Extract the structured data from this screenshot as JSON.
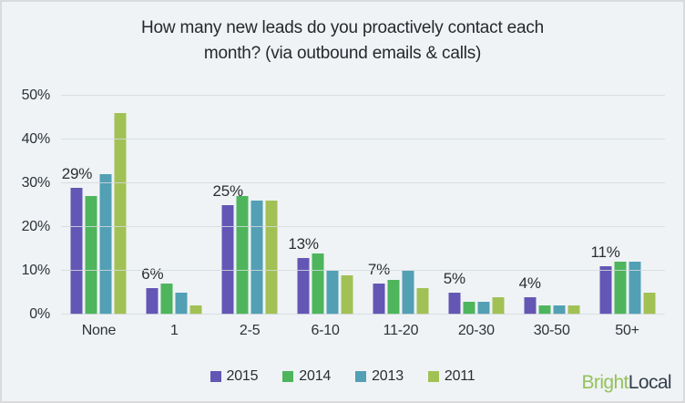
{
  "card": {
    "background": "#eff3f6",
    "border_color": "#d8dadb"
  },
  "chart_data": {
    "type": "bar",
    "title": "How many new leads do you proactively contact each month? (via outbound emails & calls)",
    "title_lines": [
      "How many new leads do you proactively contact each",
      "month? (via outbound emails & calls)"
    ],
    "categories": [
      "None",
      "1",
      "2-5",
      "6-10",
      "11-20",
      "20-30",
      "30-50",
      "50+"
    ],
    "series": [
      {
        "name": "2015",
        "color": "#6456b4",
        "values": [
          29,
          6,
          25,
          13,
          7,
          5,
          4,
          11
        ]
      },
      {
        "name": "2014",
        "color": "#4eb55c",
        "values": [
          27,
          7,
          27,
          14,
          8,
          3,
          2,
          12
        ]
      },
      {
        "name": "2013",
        "color": "#539fb4",
        "values": [
          32,
          5,
          26,
          10,
          10,
          3,
          2,
          12
        ]
      },
      {
        "name": "2011",
        "color": "#a2c155",
        "values": [
          46,
          2,
          26,
          9,
          6,
          4,
          2,
          5
        ]
      }
    ],
    "data_labels": [
      "29%",
      "6%",
      "25%",
      "13%",
      "7%",
      "5%",
      "4%",
      "11%"
    ],
    "data_labels_on_series": "2015",
    "y_ticks": [
      {
        "v": 0,
        "label": "0%"
      },
      {
        "v": 10,
        "label": "10%"
      },
      {
        "v": 20,
        "label": "20%"
      },
      {
        "v": 30,
        "label": "30%"
      },
      {
        "v": 40,
        "label": "40%"
      },
      {
        "v": 50,
        "label": "50%"
      }
    ],
    "ylim": [
      0,
      50
    ],
    "xlabel": "",
    "ylabel": "",
    "grid": true,
    "legend_position": "bottom"
  },
  "branding": {
    "logo_part1": "Bright",
    "logo_part1_color": "#94c25a",
    "logo_part2": "Local",
    "logo_part2_color": "#323f4a"
  }
}
